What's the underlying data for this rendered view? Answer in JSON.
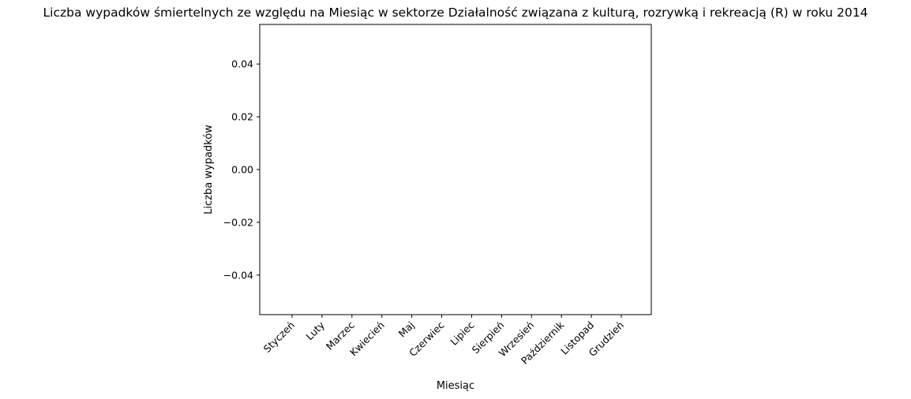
{
  "chart_data": {
    "type": "bar",
    "title": "Liczba wypadków śmiertelnych ze względu na Miesiąc w sektorze Działalność związana z kulturą, rozrywką i rekreacją  (R) w roku 2014",
    "xlabel": "Miesiąc",
    "ylabel": "Liczba wypadków",
    "categories": [
      "Styczeń",
      "Luty",
      "Marzec",
      "Kwiecień",
      "Maj",
      "Czerwiec",
      "Lipiec",
      "Sierpień",
      "Wrzesień",
      "Październik",
      "Listopad",
      "Grudzień"
    ],
    "values": [
      0,
      0,
      0,
      0,
      0,
      0,
      0,
      0,
      0,
      0,
      0,
      0
    ],
    "ylim": [
      -0.055,
      0.055
    ],
    "yticks": [
      0.04,
      0.02,
      0.0,
      -0.02,
      -0.04
    ],
    "ytick_labels": [
      "0.04",
      "0.02",
      "0.00",
      "−0.02",
      "−0.04"
    ],
    "grid": false,
    "legend": "none"
  }
}
